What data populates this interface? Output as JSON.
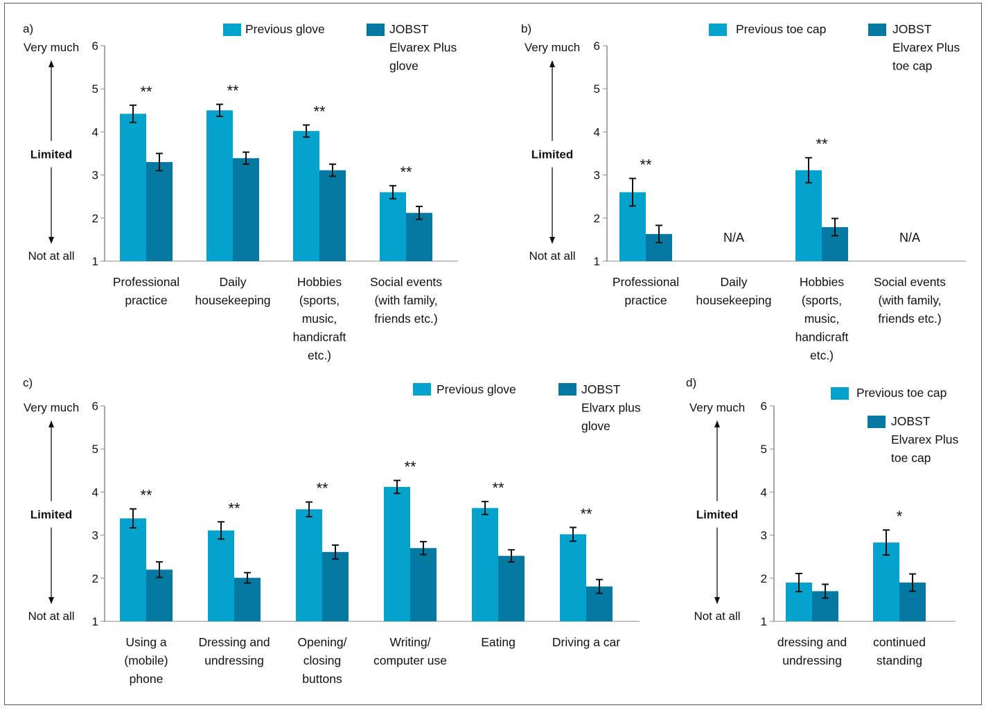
{
  "colors": {
    "previous": "#04A3CD",
    "jobst": "#0679A3",
    "axis": "#8a8a8a",
    "text": "#111111"
  },
  "scale_labels": {
    "top": "Very much",
    "middle": "Limited",
    "bottom": "Not at all"
  },
  "chart_data": [
    {
      "id": "a",
      "panel_label": "a)",
      "type": "bar",
      "categories": [
        [
          "Professional",
          "practice"
        ],
        [
          "Daily",
          "housekeeping"
        ],
        [
          "Hobbies",
          "(sports,",
          "music,",
          "handicraft",
          "etc.)"
        ],
        [
          "Social events",
          "(with family,",
          "friends etc.)"
        ]
      ],
      "ylim": [
        1,
        6
      ],
      "yticks": [
        1,
        2,
        3,
        4,
        5,
        6
      ],
      "grid": false,
      "series": [
        {
          "name": [
            "Previous glove"
          ],
          "values": [
            4.42,
            4.5,
            4.02,
            2.6
          ],
          "errors": [
            0.2,
            0.14,
            0.14,
            0.15
          ]
        },
        {
          "name": [
            "JOBST",
            "Elvarex Plus",
            "glove"
          ],
          "values": [
            3.3,
            3.39,
            3.11,
            2.12
          ],
          "errors": [
            0.2,
            0.14,
            0.14,
            0.15
          ]
        }
      ],
      "annotations": [
        "**",
        "**",
        "**",
        "**"
      ],
      "legend_placement": "top"
    },
    {
      "id": "b",
      "panel_label": "b)",
      "type": "bar",
      "categories": [
        [
          "Professional",
          "practice"
        ],
        [
          "Daily",
          "housekeeping"
        ],
        [
          "Hobbies",
          "(sports,",
          "music,",
          "handicraft",
          "etc.)"
        ],
        [
          "Social events",
          "(with family,",
          "friends etc.)"
        ]
      ],
      "ylim": [
        1,
        6
      ],
      "yticks": [
        1,
        2,
        3,
        4,
        5,
        6
      ],
      "grid": false,
      "series": [
        {
          "name": [
            "Previous toe cap"
          ],
          "values": [
            2.6,
            null,
            3.11,
            null
          ],
          "errors": [
            0.32,
            null,
            0.29,
            null
          ]
        },
        {
          "name": [
            "JOBST",
            "Elvarex Plus",
            "toe cap"
          ],
          "values": [
            1.63,
            null,
            1.79,
            null
          ],
          "errors": [
            0.2,
            null,
            0.2,
            null
          ]
        }
      ],
      "annotations": [
        "**",
        "N/A",
        "**",
        "N/A"
      ],
      "legend_placement": "top"
    },
    {
      "id": "c",
      "panel_label": "c)",
      "type": "bar",
      "categories": [
        [
          "Using a",
          "(mobile)",
          "phone"
        ],
        [
          "Dressing and",
          "undressing"
        ],
        [
          "Opening/",
          "closing",
          "buttons"
        ],
        [
          "Writing/",
          "computer use"
        ],
        [
          "Eating"
        ],
        [
          "Driving a car"
        ]
      ],
      "ylim": [
        1,
        6
      ],
      "yticks": [
        1,
        2,
        3,
        4,
        5,
        6
      ],
      "grid": false,
      "series": [
        {
          "name": [
            "Previous glove"
          ],
          "values": [
            3.39,
            3.11,
            3.6,
            4.12,
            3.63,
            3.02
          ],
          "errors": [
            0.22,
            0.2,
            0.17,
            0.15,
            0.15,
            0.16
          ]
        },
        {
          "name": [
            "JOBST",
            "Elvarx plus",
            "glove"
          ],
          "values": [
            2.2,
            2.01,
            2.61,
            2.7,
            2.52,
            1.81
          ],
          "errors": [
            0.18,
            0.12,
            0.16,
            0.15,
            0.14,
            0.16
          ]
        }
      ],
      "annotations": [
        "**",
        "**",
        "**",
        "**",
        "**",
        "**"
      ],
      "legend_placement": "top-right"
    },
    {
      "id": "d",
      "panel_label": "d)",
      "type": "bar",
      "categories": [
        [
          "dressing and",
          "undressing"
        ],
        [
          "continued",
          "standing"
        ]
      ],
      "ylim": [
        1,
        6
      ],
      "yticks": [
        1,
        2,
        3,
        4,
        5,
        6
      ],
      "grid": false,
      "series": [
        {
          "name": [
            "Previous toe cap"
          ],
          "values": [
            1.9,
            2.83
          ],
          "errors": [
            0.21,
            0.29
          ]
        },
        {
          "name": [
            "JOBST",
            "Elvarex Plus",
            "toe cap"
          ],
          "values": [
            1.7,
            1.9
          ],
          "errors": [
            0.16,
            0.2
          ]
        }
      ],
      "annotations": [
        "",
        "*"
      ],
      "legend_placement": "top-right"
    }
  ]
}
